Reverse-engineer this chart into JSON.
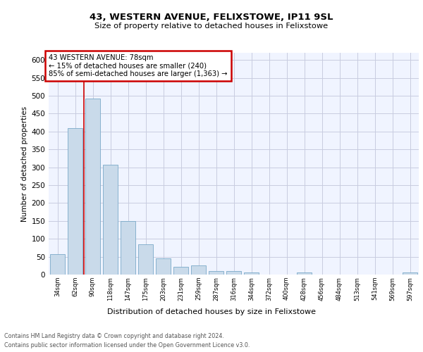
{
  "title1": "43, WESTERN AVENUE, FELIXSTOWE, IP11 9SL",
  "title2": "Size of property relative to detached houses in Felixstowe",
  "xlabel": "Distribution of detached houses by size in Felixstowe",
  "ylabel": "Number of detached properties",
  "categories": [
    "34sqm",
    "62sqm",
    "90sqm",
    "118sqm",
    "147sqm",
    "175sqm",
    "203sqm",
    "231sqm",
    "259sqm",
    "287sqm",
    "316sqm",
    "344sqm",
    "372sqm",
    "400sqm",
    "428sqm",
    "456sqm",
    "484sqm",
    "513sqm",
    "541sqm",
    "569sqm",
    "597sqm"
  ],
  "values": [
    57,
    410,
    493,
    307,
    150,
    84,
    45,
    22,
    25,
    10,
    9,
    5,
    0,
    0,
    5,
    0,
    0,
    0,
    0,
    0,
    5
  ],
  "bar_color": "#c9daea",
  "bar_edge_color": "#7aaac8",
  "annotation_title": "43 WESTERN AVENUE: 78sqm",
  "annotation_line1": "← 15% of detached houses are smaller (240)",
  "annotation_line2": "85% of semi-detached houses are larger (1,363) →",
  "annotation_box_color": "#cc0000",
  "ylim": [
    0,
    620
  ],
  "yticks": [
    0,
    50,
    100,
    150,
    200,
    250,
    300,
    350,
    400,
    450,
    500,
    550,
    600
  ],
  "footer1": "Contains HM Land Registry data © Crown copyright and database right 2024.",
  "footer2": "Contains public sector information licensed under the Open Government Licence v3.0.",
  "bg_color": "#f0f4ff",
  "grid_color": "#c8cce0",
  "red_line_x": 1.5
}
